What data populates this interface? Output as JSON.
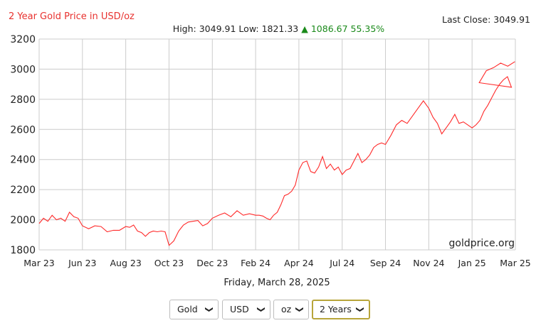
{
  "header": {
    "title": "2 Year Gold Price in USD/oz",
    "last_close": "Last Close: 3049.91",
    "high_label": "High:",
    "high": "3049.91",
    "low_label": "Low:",
    "low": "1821.33",
    "change_arrow": "▲",
    "change": "1086.67 55.35%"
  },
  "watermark": "goldprice.org",
  "date": "Friday, March 28, 2025",
  "controls": {
    "metal": "Gold",
    "currency": "USD",
    "unit": "oz",
    "range": "2 Years"
  },
  "colors": {
    "line": "#ff2a2a",
    "title": "#e8322f",
    "change": "#1a8a1a",
    "grid": "#cccccc"
  },
  "chart_data": {
    "type": "line",
    "title": "2 Year Gold Price in USD/oz",
    "xlabel": "",
    "ylabel": "",
    "ylim": [
      1800,
      3200
    ],
    "yticks": [
      1800,
      2000,
      2200,
      2400,
      2600,
      2800,
      3000,
      3200
    ],
    "xticks": [
      "Mar 23",
      "Jun 23",
      "Aug 23",
      "Oct 23",
      "Dec 23",
      "Feb 24",
      "Apr 24",
      "Jul 24",
      "Sep 24",
      "Nov 24",
      "Jan 25",
      "Mar 25"
    ],
    "grid": true,
    "series": [
      {
        "values": [
          [
            "Mar 23",
            1975
          ],
          [
            "Mar 23",
            2010
          ],
          [
            "Mar 23",
            1990
          ],
          [
            "Mar 23",
            2030
          ],
          [
            "Mar 23",
            2000
          ],
          [
            "Mar 23",
            2010
          ],
          [
            "Mar 23",
            1990
          ],
          [
            "Mar 23",
            2050
          ],
          [
            "Mar 23",
            2020
          ],
          [
            "Mar 23",
            2010
          ],
          [
            "Jun 23",
            1960
          ],
          [
            "Jun 23",
            1940
          ],
          [
            "Jun 23",
            1960
          ],
          [
            "Jun 23",
            1955
          ],
          [
            "Jun 23",
            1920
          ],
          [
            "Jun 23",
            1930
          ],
          [
            "Jun 23",
            1930
          ],
          [
            "Aug 23",
            1955
          ],
          [
            "Aug 23",
            1950
          ],
          [
            "Aug 23",
            1965
          ],
          [
            "Aug 23",
            1925
          ],
          [
            "Aug 23",
            1915
          ],
          [
            "Aug 23",
            1890
          ],
          [
            "Aug 23",
            1915
          ],
          [
            "Aug 23",
            1925
          ],
          [
            "Aug 23",
            1920
          ],
          [
            "Aug 23",
            1925
          ],
          [
            "Aug 23",
            1920
          ],
          [
            "Oct 23",
            1830
          ],
          [
            "Oct 23",
            1860
          ],
          [
            "Oct 23",
            1925
          ],
          [
            "Oct 23",
            1965
          ],
          [
            "Oct 23",
            1985
          ],
          [
            "Oct 23",
            1990
          ],
          [
            "Oct 23",
            1995
          ],
          [
            "Oct 23",
            1960
          ],
          [
            "Oct 23",
            1975
          ],
          [
            "Dec 23",
            2010
          ],
          [
            "Dec 23",
            2030
          ],
          [
            "Dec 23",
            2045
          ],
          [
            "Dec 23",
            2020
          ],
          [
            "Dec 23",
            2060
          ],
          [
            "Dec 23",
            2030
          ],
          [
            "Dec 23",
            2040
          ],
          [
            "Feb 24",
            2030
          ],
          [
            "Feb 24",
            2030
          ],
          [
            "Feb 24",
            2025
          ],
          [
            "Feb 24",
            2010
          ],
          [
            "Feb 24",
            2000
          ],
          [
            "Feb 24",
            2030
          ],
          [
            "Feb 24",
            2050
          ],
          [
            "Feb 24",
            2100
          ],
          [
            "Feb 24",
            2160
          ],
          [
            "Feb 24",
            2170
          ],
          [
            "Feb 24",
            2190
          ],
          [
            "Feb 24",
            2230
          ],
          [
            "Apr 24",
            2330
          ],
          [
            "Apr 24",
            2380
          ],
          [
            "Apr 24",
            2390
          ],
          [
            "Apr 24",
            2320
          ],
          [
            "Apr 24",
            2310
          ],
          [
            "Apr 24",
            2350
          ],
          [
            "Apr 24",
            2420
          ],
          [
            "Apr 24",
            2340
          ],
          [
            "Apr 24",
            2370
          ],
          [
            "Apr 24",
            2330
          ],
          [
            "Apr 24",
            2350
          ],
          [
            "Jul 24",
            2300
          ],
          [
            "Jul 24",
            2330
          ],
          [
            "Jul 24",
            2340
          ],
          [
            "Jul 24",
            2390
          ],
          [
            "Jul 24",
            2440
          ],
          [
            "Jul 24",
            2380
          ],
          [
            "Jul 24",
            2400
          ],
          [
            "Jul 24",
            2430
          ],
          [
            "Jul 24",
            2480
          ],
          [
            "Jul 24",
            2500
          ],
          [
            "Jul 24",
            2510
          ],
          [
            "Sep 24",
            2500
          ],
          [
            "Sep 24",
            2560
          ],
          [
            "Sep 24",
            2630
          ],
          [
            "Sep 24",
            2660
          ],
          [
            "Sep 24",
            2640
          ],
          [
            "Sep 24",
            2690
          ],
          [
            "Sep 24",
            2740
          ],
          [
            "Sep 24",
            2790
          ],
          [
            "Nov 24",
            2740
          ],
          [
            "Nov 24",
            2680
          ],
          [
            "Nov 24",
            2640
          ],
          [
            "Nov 24",
            2570
          ],
          [
            "Nov 24",
            2610
          ],
          [
            "Nov 24",
            2650
          ],
          [
            "Nov 24",
            2700
          ],
          [
            "Nov 24",
            2640
          ],
          [
            "Nov 24",
            2650
          ],
          [
            "Nov 24",
            2630
          ],
          [
            "Jan 25",
            2610
          ],
          [
            "Jan 25",
            2630
          ],
          [
            "Jan 25",
            2660
          ],
          [
            "Jan 25",
            2720
          ],
          [
            "Jan 25",
            2760
          ],
          [
            "Jan 25",
            2810
          ],
          [
            "Jan 25",
            2860
          ],
          [
            "Jan 25",
            2900
          ],
          [
            "Jan 25",
            2930
          ],
          [
            "Jan 25",
            2950
          ],
          [
            "Jan 25",
            2880
          ],
          [
            "Mar 25",
            2910
          ],
          [
            "Mar 25",
            2990
          ],
          [
            "Mar 25",
            3010
          ],
          [
            "Mar 25",
            3040
          ],
          [
            "Mar 25",
            3020
          ],
          [
            "Mar 25",
            3049.91
          ]
        ]
      }
    ]
  }
}
